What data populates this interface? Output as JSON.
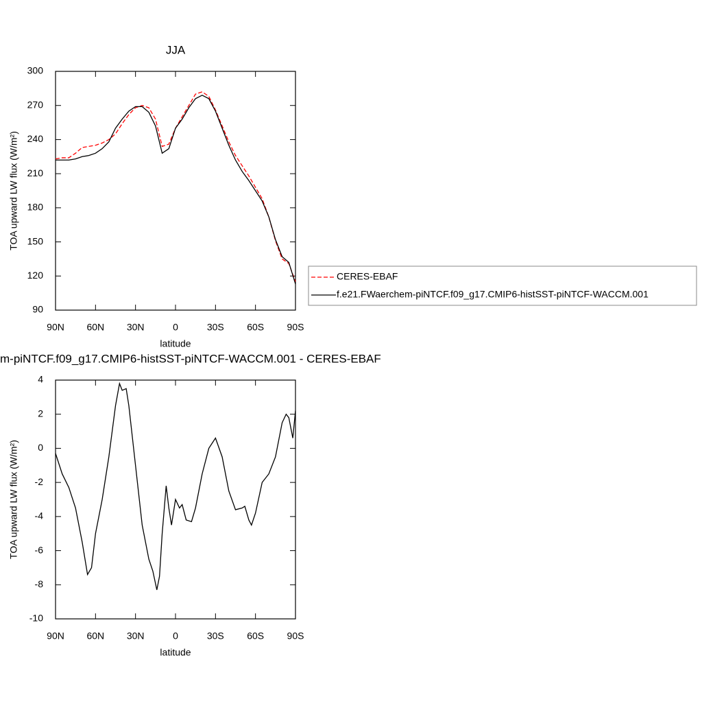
{
  "chart_data": [
    {
      "type": "line",
      "title": "JJA",
      "xlabel": "latitude",
      "ylabel": "TOA upward LW flux (W/m²)",
      "xlim": [
        90,
        -90
      ],
      "xticks": [
        {
          "value": 90,
          "label": "90N"
        },
        {
          "value": 60,
          "label": "60N"
        },
        {
          "value": 30,
          "label": "30N"
        },
        0,
        {
          "value": -30,
          "label": "30S"
        },
        {
          "value": -60,
          "label": "60S"
        },
        {
          "value": -90,
          "label": "90S"
        }
      ],
      "ylim": [
        90,
        300
      ],
      "yticks": [
        90,
        120,
        150,
        180,
        210,
        240,
        270,
        300
      ],
      "legend": "right",
      "x": [
        90,
        85,
        80,
        75,
        70,
        65,
        60,
        55,
        50,
        45,
        40,
        35,
        30,
        25,
        20,
        15,
        10,
        5,
        0,
        -5,
        -10,
        -15,
        -20,
        -25,
        -30,
        -35,
        -40,
        -45,
        -50,
        -55,
        -60,
        -65,
        -70,
        -75,
        -80,
        -85,
        -90
      ],
      "series": [
        {
          "name": "CERES-EBAF",
          "color": "#ff0000",
          "dash": "dashed",
          "values": [
            223,
            224,
            224,
            228,
            233,
            234,
            235,
            237,
            240,
            245,
            254,
            262,
            268,
            270,
            268,
            258,
            234,
            236,
            250,
            260,
            270,
            280,
            282,
            278,
            266,
            252,
            238,
            226,
            217,
            208,
            198,
            188,
            172,
            151,
            135,
            131,
            115
          ]
        },
        {
          "name": "f.e21.FWaerchem-piNTCF.f09_g17.CMIP6-histSST-piNTCF-WACCM.001",
          "color": "#000000",
          "dash": "solid",
          "values": [
            222,
            222,
            222,
            223,
            225,
            226,
            228,
            232,
            238,
            250,
            258,
            265,
            269,
            269,
            264,
            252,
            228,
            232,
            250,
            258,
            268,
            276,
            279,
            276,
            265,
            250,
            235,
            222,
            212,
            204,
            195,
            186,
            172,
            152,
            137,
            132,
            113
          ]
        }
      ]
    },
    {
      "type": "line",
      "title": "m-piNTCF.f09_g17.CMIP6-histSST-piNTCF-WACCM.001 - CERES-EBAF",
      "xlabel": "latitude",
      "ylabel": "TOA upward LW flux (W/m²)",
      "xlim": [
        90,
        -90
      ],
      "xticks": [
        {
          "value": 90,
          "label": "90N"
        },
        {
          "value": 60,
          "label": "60N"
        },
        {
          "value": 30,
          "label": "30N"
        },
        0,
        {
          "value": -30,
          "label": "30S"
        },
        {
          "value": -60,
          "label": "60S"
        },
        {
          "value": -90,
          "label": "90S"
        }
      ],
      "ylim": [
        -10,
        4
      ],
      "yticks": [
        -10,
        -8,
        -6,
        -4,
        -2,
        0,
        2,
        4
      ],
      "color": "#000000",
      "x": [
        90,
        85,
        80,
        75,
        70,
        66,
        63,
        60,
        55,
        50,
        45,
        42,
        40,
        37,
        35,
        30,
        25,
        20,
        17,
        14,
        12,
        10,
        7,
        5,
        3,
        0,
        -3,
        -5,
        -8,
        -12,
        -15,
        -20,
        -25,
        -30,
        -35,
        -40,
        -45,
        -50,
        -52,
        -55,
        -57,
        -60,
        -65,
        -70,
        -75,
        -80,
        -83,
        -85,
        -88,
        -90
      ],
      "values": [
        -0.3,
        -1.5,
        -2.3,
        -3.5,
        -5.5,
        -7.4,
        -7,
        -5,
        -3,
        -0.5,
        2.5,
        3.8,
        3.4,
        3.5,
        2.5,
        -1,
        -4.5,
        -6.5,
        -7.2,
        -8.3,
        -7.5,
        -5,
        -2.2,
        -3.5,
        -4.5,
        -3,
        -3.5,
        -3.3,
        -4.2,
        -4.3,
        -3.5,
        -1.5,
        0,
        0.6,
        -0.5,
        -2.5,
        -3.6,
        -3.5,
        -3.4,
        -4.2,
        -4.5,
        -3.8,
        -2,
        -1.5,
        -0.5,
        1.5,
        2,
        1.8,
        0.6,
        2.2
      ]
    }
  ]
}
